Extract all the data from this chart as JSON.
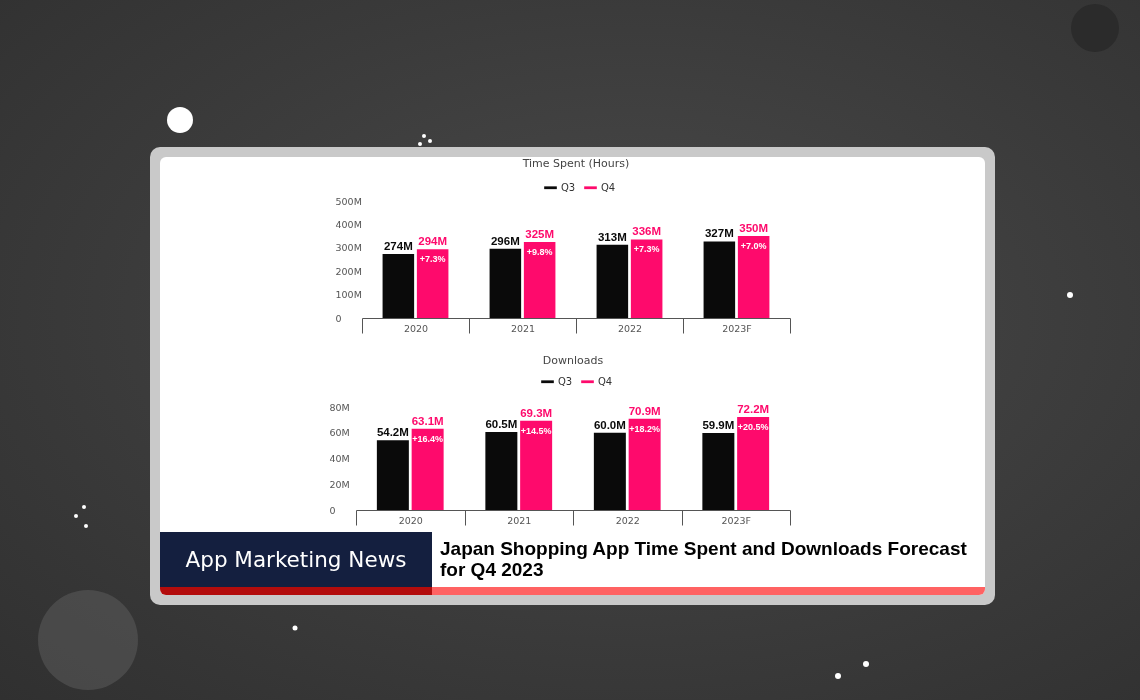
{
  "chart_data": [
    {
      "type": "bar",
      "title": "Time Spent (Hours)",
      "categories": [
        "2020",
        "2021",
        "2022",
        "2023F"
      ],
      "series": [
        {
          "name": "Q3",
          "color": "#0a0a0a",
          "values": [
            274,
            296,
            313,
            327
          ],
          "value_labels": [
            "274M",
            "296M",
            "313M",
            "327M"
          ]
        },
        {
          "name": "Q4",
          "color": "#fe0a6c",
          "values": [
            294,
            325,
            336,
            350
          ],
          "value_labels": [
            "294M",
            "325M",
            "336M",
            "350M"
          ]
        }
      ],
      "ylim": [
        0,
        500
      ],
      "yticks": [
        0,
        {
          "value": 100,
          "label": "100M"
        },
        {
          "value": 200,
          "label": "200M"
        },
        {
          "value": 300,
          "label": "300M"
        },
        {
          "value": 400,
          "label": "400M"
        },
        {
          "value": 500,
          "label": "500M"
        }
      ],
      "legend": "top",
      "annotations": [
        {
          "text": "+7.3%",
          "x": "2020",
          "y": 294
        },
        {
          "text": "+9.8%",
          "x": "2021",
          "y": 325
        },
        {
          "text": "+7.3%",
          "x": "2022",
          "y": 336
        },
        {
          "text": "+7.0%",
          "x": "2023F",
          "y": 350
        }
      ]
    },
    {
      "type": "bar",
      "title": "Downloads",
      "categories": [
        "2020",
        "2021",
        "2022",
        "2023F"
      ],
      "series": [
        {
          "name": "Q3",
          "color": "#0a0a0a",
          "values": [
            54.2,
            60.5,
            60.0,
            59.9
          ],
          "value_labels": [
            "54.2M",
            "60.5M",
            "60.0M",
            "59.9M"
          ]
        },
        {
          "name": "Q4",
          "color": "#fe0a6c",
          "values": [
            63.1,
            69.3,
            70.9,
            72.2
          ],
          "value_labels": [
            "63.1M",
            "69.3M",
            "70.9M",
            "72.2M"
          ]
        }
      ],
      "ylim": [
        0,
        80
      ],
      "yticks": [
        0,
        {
          "value": 20,
          "label": "20M"
        },
        {
          "value": 40,
          "label": "40M"
        },
        {
          "value": 60,
          "label": "60M"
        },
        {
          "value": 80,
          "label": "80M"
        }
      ],
      "legend": "top",
      "annotations": [
        {
          "text": "+16.4%",
          "x": "2020",
          "y": 63.1
        },
        {
          "text": "+14.5%",
          "x": "2021",
          "y": 69.3
        },
        {
          "text": "+18.2%",
          "x": "2022",
          "y": 70.9
        },
        {
          "text": "+20.5%",
          "x": "2023F",
          "y": 72.2
        }
      ]
    },
    {
      "type": "other",
      "title": "Japan Shopping App Time Spent and Downloads Forecast for Q4 2023",
      "annotations": [
        "App Marketing News"
      ]
    }
  ]
}
